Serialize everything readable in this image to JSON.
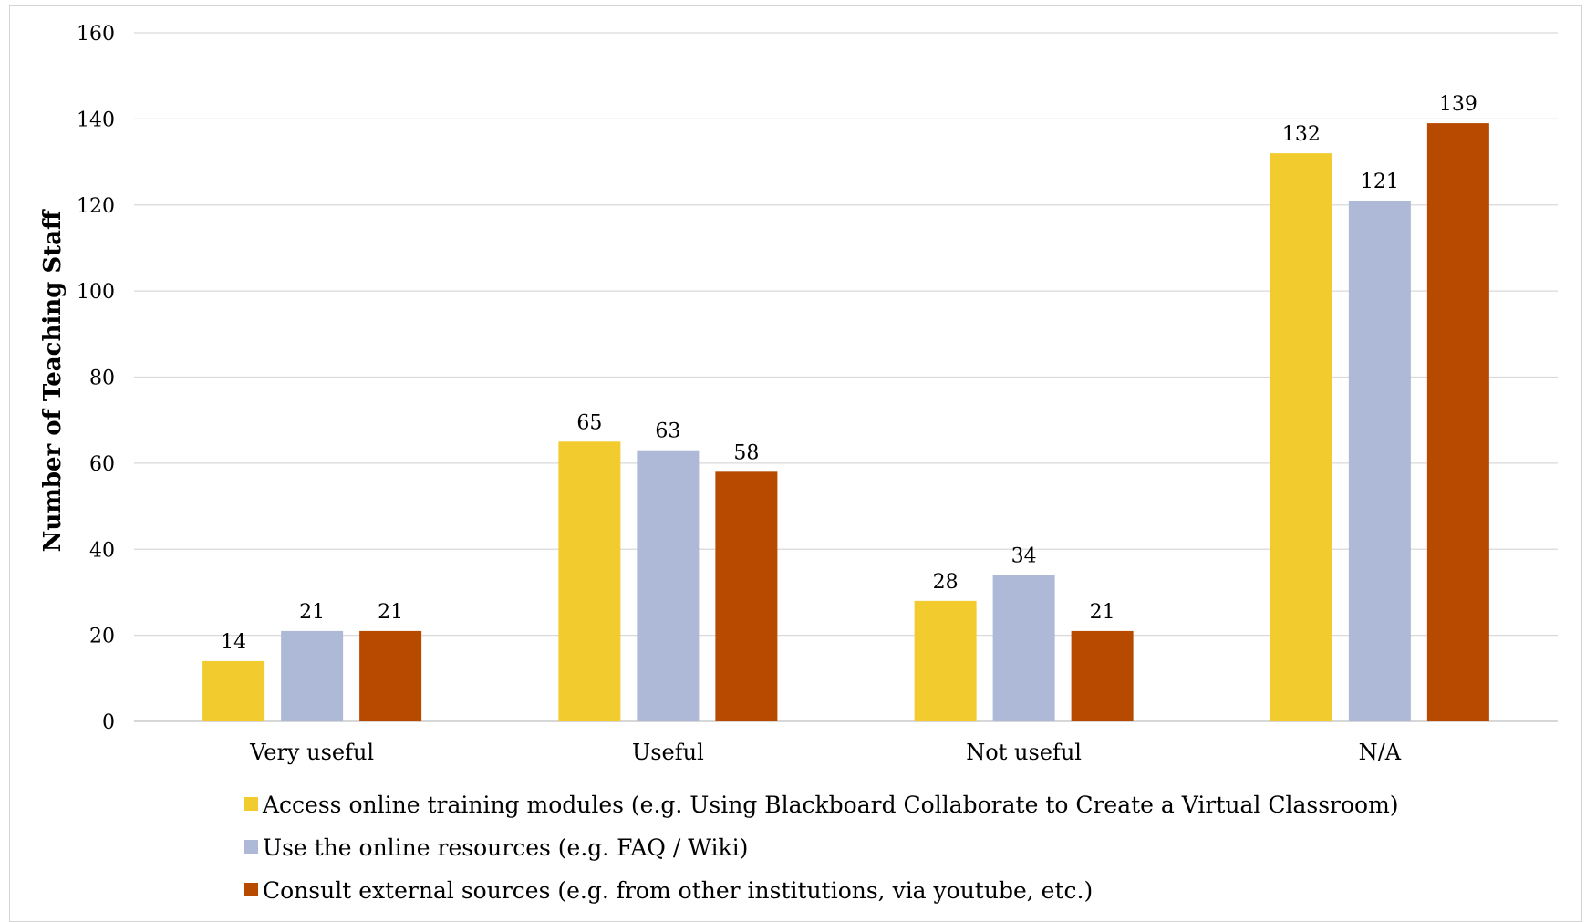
{
  "chart_data": {
    "type": "bar",
    "title": "",
    "xlabel": "",
    "ylabel": "Number of Teaching Staff",
    "ylim": [
      0,
      160
    ],
    "yticks": [
      0,
      20,
      40,
      60,
      80,
      100,
      120,
      140,
      160
    ],
    "ytick_labels": [
      "0",
      "20",
      "40",
      "60",
      "80",
      "100",
      "120",
      "140",
      "160"
    ],
    "grid": true,
    "legend_position": "bottom",
    "categories": [
      "Very useful",
      "Useful",
      "Not useful",
      "N/A"
    ],
    "series": [
      {
        "name": "Access online training modules (e.g. Using Blackboard Collaborate to Create a Virtual Classroom)",
        "color": "#F2CC2E",
        "values": [
          14,
          65,
          28,
          132
        ]
      },
      {
        "name": "Use the online resources (e.g. FAQ / Wiki)",
        "color": "#ADB9D6",
        "values": [
          21,
          63,
          34,
          121
        ]
      },
      {
        "name": "Consult external sources (e.g. from other institutions, via youtube, etc.)",
        "color": "#B84A00",
        "values": [
          21,
          58,
          21,
          139
        ]
      }
    ],
    "data_labels": true
  }
}
